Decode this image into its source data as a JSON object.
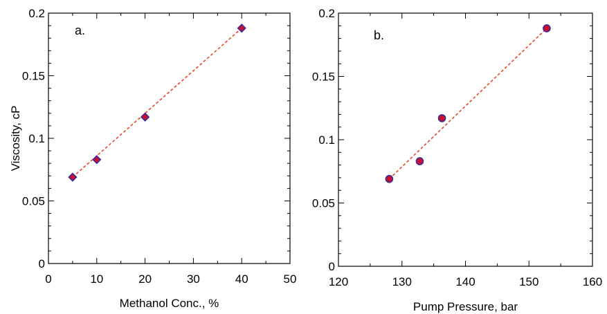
{
  "chart_data": [
    {
      "type": "scatter",
      "panel_label": "a.",
      "xlabel": "Methanol Conc., %",
      "ylabel": "Viscosity, cP",
      "xlim": [
        0,
        50
      ],
      "ylim": [
        0,
        0.2
      ],
      "xticks": [
        "0",
        "10",
        "20",
        "30",
        "40",
        "50"
      ],
      "yticks": [
        "0",
        "0.05",
        "0.1",
        "0.15",
        "0.2"
      ],
      "grid": false,
      "marker": "diamond",
      "marker_fill": "#c8102e",
      "marker_edge": "#3a2a9a",
      "trendline_color": "#e8452c",
      "trendline": {
        "x": [
          5,
          40
        ],
        "y": [
          0.069,
          0.188
        ]
      },
      "series": [
        {
          "x": [
            5,
            10,
            20,
            40
          ],
          "y": [
            0.069,
            0.083,
            0.117,
            0.188
          ]
        }
      ]
    },
    {
      "type": "scatter",
      "panel_label": "b.",
      "xlabel": "Pump Pressure, bar",
      "ylabel": "",
      "xlim": [
        120,
        160
      ],
      "ylim": [
        0,
        0.2
      ],
      "xticks": [
        "120",
        "130",
        "140",
        "150",
        "160"
      ],
      "yticks": [
        "0",
        "0.05",
        "0.1",
        "0.15",
        "0.2"
      ],
      "grid": false,
      "marker": "circle",
      "marker_fill": "#c8102e",
      "marker_edge": "#3a2a9a",
      "trendline_color": "#e8452c",
      "trendline": {
        "x": [
          128,
          152.8
        ],
        "y": [
          0.069,
          0.188
        ]
      },
      "series": [
        {
          "x": [
            128,
            132.8,
            136.3,
            152.8
          ],
          "y": [
            0.069,
            0.083,
            0.117,
            0.188
          ]
        }
      ]
    }
  ]
}
